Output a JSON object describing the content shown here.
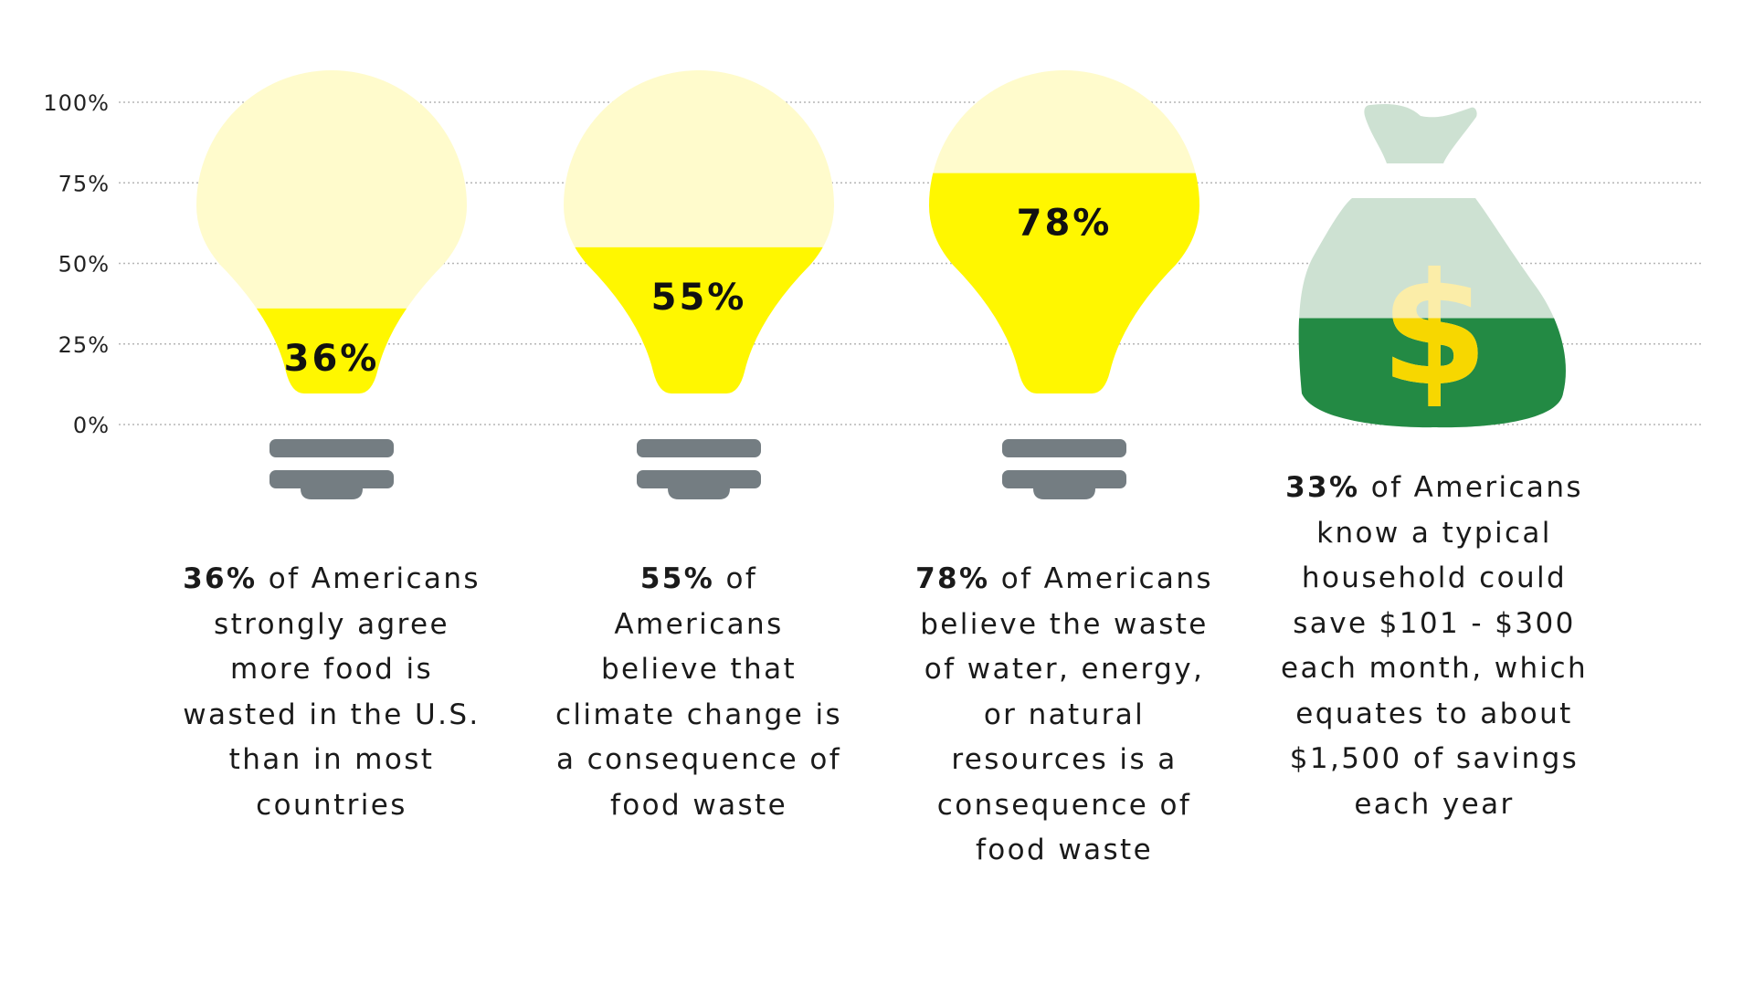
{
  "chart_data": {
    "type": "bar",
    "ylim": [
      0,
      100
    ],
    "yticks": [
      "100%",
      "75%",
      "50%",
      "25%",
      "0%"
    ],
    "ytick_values": [
      100,
      75,
      50,
      25,
      0
    ],
    "grid": true,
    "categories": [
      "bulb-1",
      "bulb-2",
      "bulb-3",
      "money-bag"
    ],
    "values": [
      36,
      55,
      78,
      33
    ],
    "value_labels": [
      "36%",
      "55%",
      "78%",
      ""
    ],
    "shapes": [
      "bulb",
      "bulb",
      "bulb",
      "money-bag"
    ],
    "captions": [
      {
        "bold": "36%",
        "text": " of Americans strongly agree more food is wasted in the U.S. than in most countries"
      },
      {
        "bold": "55%",
        "text": " of Americans believe that climate change is a consequence of food waste"
      },
      {
        "bold": "78%",
        "text": " of Americans believe the waste of water, energy, or natural resources is a consequence of food waste"
      },
      {
        "bold": "33%",
        "text": " of Americans know a typical household could save $101 - $300 each month, which equates to about $1,500 of savings each year"
      }
    ]
  },
  "colors": {
    "bulb_fill": "#fff700",
    "bulb_empty": "#fffbcc",
    "bulb_base": "#747d82",
    "bag_fill": "#238a44",
    "bag_empty": "#cde1d2",
    "dollar": "#f7d700",
    "dollar_empty": "#fbeda8",
    "grid": "#b5b5b5",
    "text": "#1a1a1a"
  }
}
